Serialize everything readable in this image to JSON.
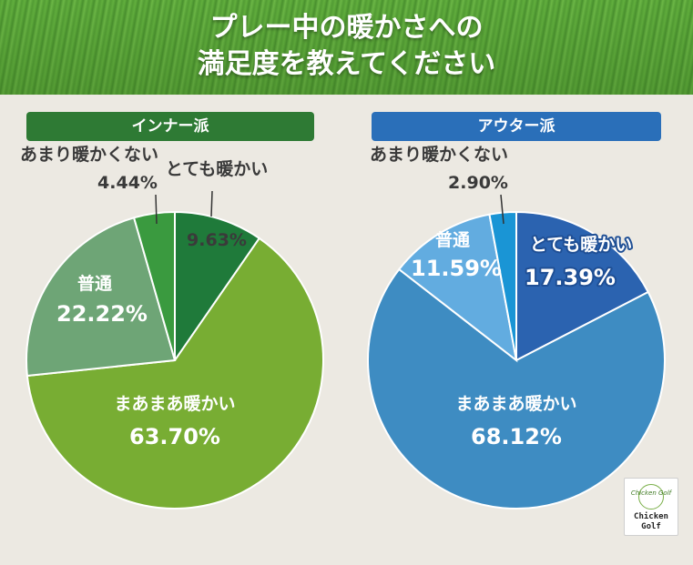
{
  "title": {
    "line1": "プレー中の暖かさへの",
    "line2": "満足度を教えてください"
  },
  "logo": {
    "script": "Chicken Golf",
    "line1": "Chicken",
    "line2": "Golf"
  },
  "chart_data": [
    {
      "type": "pie",
      "title": "インナー派",
      "unit": "%",
      "slices": [
        {
          "label": "とても暖かい",
          "value": 9.63,
          "value_text": "9.63%",
          "color": "#1f7a3a"
        },
        {
          "label": "まあまあ暖かい",
          "value": 63.7,
          "value_text": "63.70%",
          "color": "#78ad33"
        },
        {
          "label": "普通",
          "value": 22.22,
          "value_text": "22.22%",
          "color": "#6ea576"
        },
        {
          "label": "あまり暖かくない",
          "value": 4.44,
          "value_text": "4.44%",
          "color": "#3a9a3f"
        }
      ]
    },
    {
      "type": "pie",
      "title": "アウター派",
      "unit": "%",
      "slices": [
        {
          "label": "とても暖かい",
          "value": 17.39,
          "value_text": "17.39%",
          "color": "#2b63b0"
        },
        {
          "label": "まあまあ暖かい",
          "value": 68.12,
          "value_text": "68.12%",
          "color": "#3e8cc2"
        },
        {
          "label": "普通",
          "value": 11.59,
          "value_text": "11.59%",
          "color": "#62ace0"
        },
        {
          "label": "あまり暖かくない",
          "value": 2.9,
          "value_text": "2.90%",
          "color": "#1a95d5"
        }
      ]
    }
  ]
}
